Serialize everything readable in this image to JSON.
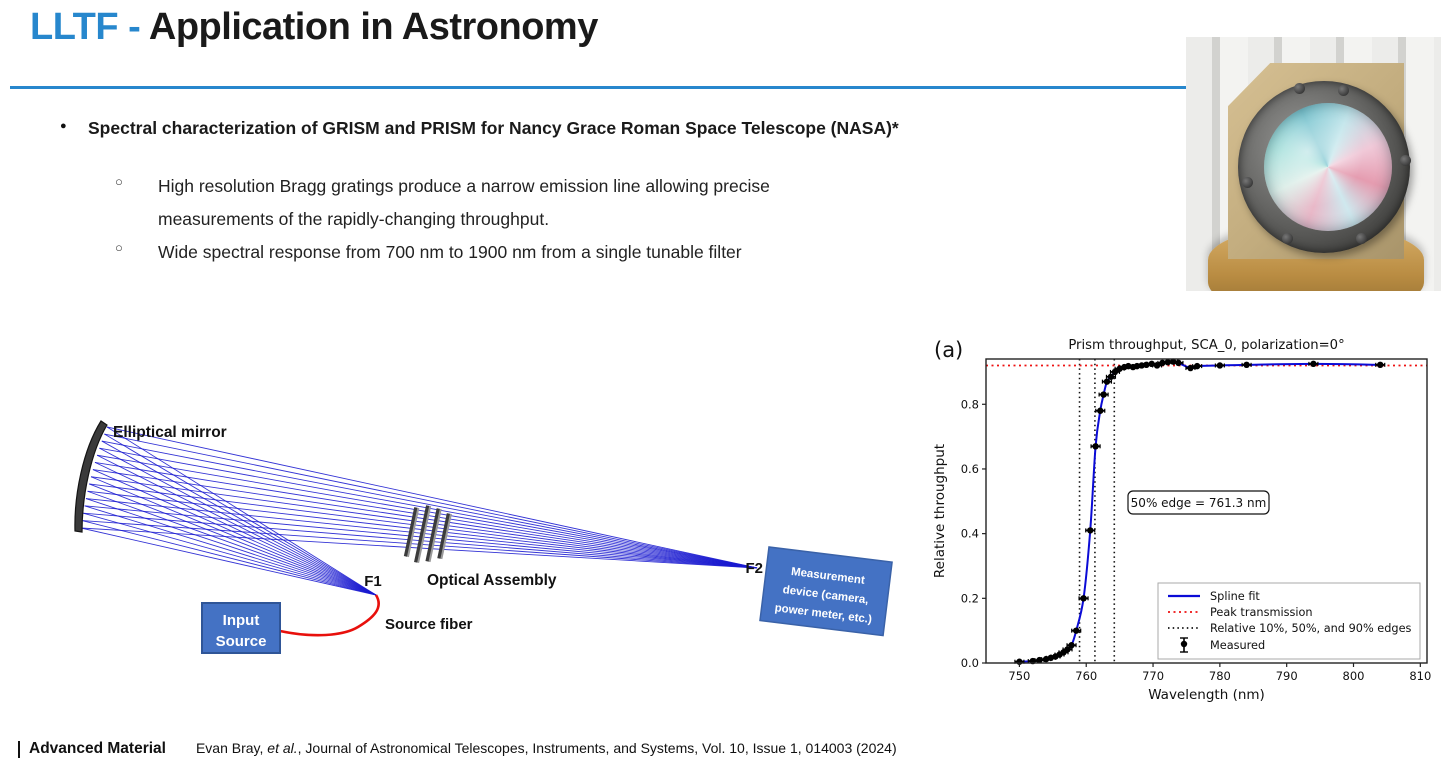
{
  "header": {
    "title_accent": "LLTF - ",
    "title_rest": "Application in Astronomy",
    "accent_color": "#2787cd"
  },
  "bullets": {
    "main": "Spectral characterization of GRISM and PRISM for Nancy Grace Roman Space Telescope (NASA)*",
    "sub1": "High resolution Bragg gratings produce a narrow emission line allowing precise measurements of the rapidly-changing throughput.",
    "sub2": "Wide spectral response from 700 nm to 1900 nm from a single tunable filter"
  },
  "diagram": {
    "labels": {
      "mirror": "Elliptical mirror",
      "assembly": "Optical Assembly",
      "f1": "F1",
      "f2": "F2",
      "fiber": "Source fiber",
      "input_line1": "Input",
      "input_line2": "Source",
      "device_line1": "Measurement",
      "device_line2": "device (camera,",
      "device_line3": "power meter, etc.)"
    },
    "colors": {
      "ray_blue": "#1a1ad0",
      "fiber_red": "#e8100c",
      "box_blue": "#4472c4",
      "box_border": "#2f5597"
    }
  },
  "chart_data": {
    "type": "scatter",
    "panel_label": "(a)",
    "title": "Prism throughput, SCA_0, polarization=0°",
    "xlabel": "Wavelength (nm)",
    "ylabel": "Relative throughput",
    "xlim": [
      745,
      811
    ],
    "ylim": [
      0,
      0.94
    ],
    "xticks": [
      750,
      760,
      770,
      780,
      790,
      800,
      810
    ],
    "yticks": [
      0.0,
      0.2,
      0.4,
      0.6,
      0.8
    ],
    "grid": false,
    "peak_transmission": 0.92,
    "edge_lines_nm": [
      759.0,
      761.3,
      764.2
    ],
    "annotation": "50% edge = 761.3 nm",
    "line_color": "#0b0bd6",
    "peak_line_color": "#ee1111",
    "edge_line_color": "#111111",
    "measured_points": [
      [
        750.0,
        0.004
      ],
      [
        752.0,
        0.006
      ],
      [
        753.0,
        0.009
      ],
      [
        754.0,
        0.012
      ],
      [
        754.7,
        0.016
      ],
      [
        755.4,
        0.02
      ],
      [
        756.0,
        0.026
      ],
      [
        756.6,
        0.033
      ],
      [
        757.2,
        0.042
      ],
      [
        757.8,
        0.055
      ],
      [
        758.5,
        0.1
      ],
      [
        759.6,
        0.2
      ],
      [
        760.6,
        0.41
      ],
      [
        761.4,
        0.67
      ],
      [
        762.1,
        0.78
      ],
      [
        762.6,
        0.83
      ],
      [
        763.1,
        0.87
      ],
      [
        763.7,
        0.885
      ],
      [
        764.3,
        0.9
      ],
      [
        765.0,
        0.91
      ],
      [
        765.7,
        0.915
      ],
      [
        766.3,
        0.918
      ],
      [
        767.0,
        0.915
      ],
      [
        767.6,
        0.918
      ],
      [
        768.3,
        0.92
      ],
      [
        769.0,
        0.922
      ],
      [
        769.8,
        0.925
      ],
      [
        770.6,
        0.92
      ],
      [
        771.4,
        0.928
      ],
      [
        772.2,
        0.93
      ],
      [
        773.0,
        0.932
      ],
      [
        773.8,
        0.928
      ],
      [
        775.6,
        0.912
      ],
      [
        776.6,
        0.918
      ],
      [
        780.0,
        0.92
      ],
      [
        784.0,
        0.922
      ],
      [
        794.0,
        0.925
      ],
      [
        804.0,
        0.922
      ]
    ],
    "legend": [
      {
        "label": "Spline fit",
        "style": "blue-solid"
      },
      {
        "label": "Peak transmission",
        "style": "red-dotted"
      },
      {
        "label": "Relative 10%, 50%, and 90% edges",
        "style": "black-dotted"
      },
      {
        "label": "Measured",
        "style": "marker"
      }
    ],
    "legend_position": "lower right"
  },
  "footer": {
    "brand": "Advanced Material",
    "citation_pre": "Evan Bray, ",
    "citation_italic": "et al.",
    "citation_post": ", Journal of Astronomical Telescopes, Instruments, and Systems, Vol. 10, Issue 1, 014003 (2024)"
  }
}
